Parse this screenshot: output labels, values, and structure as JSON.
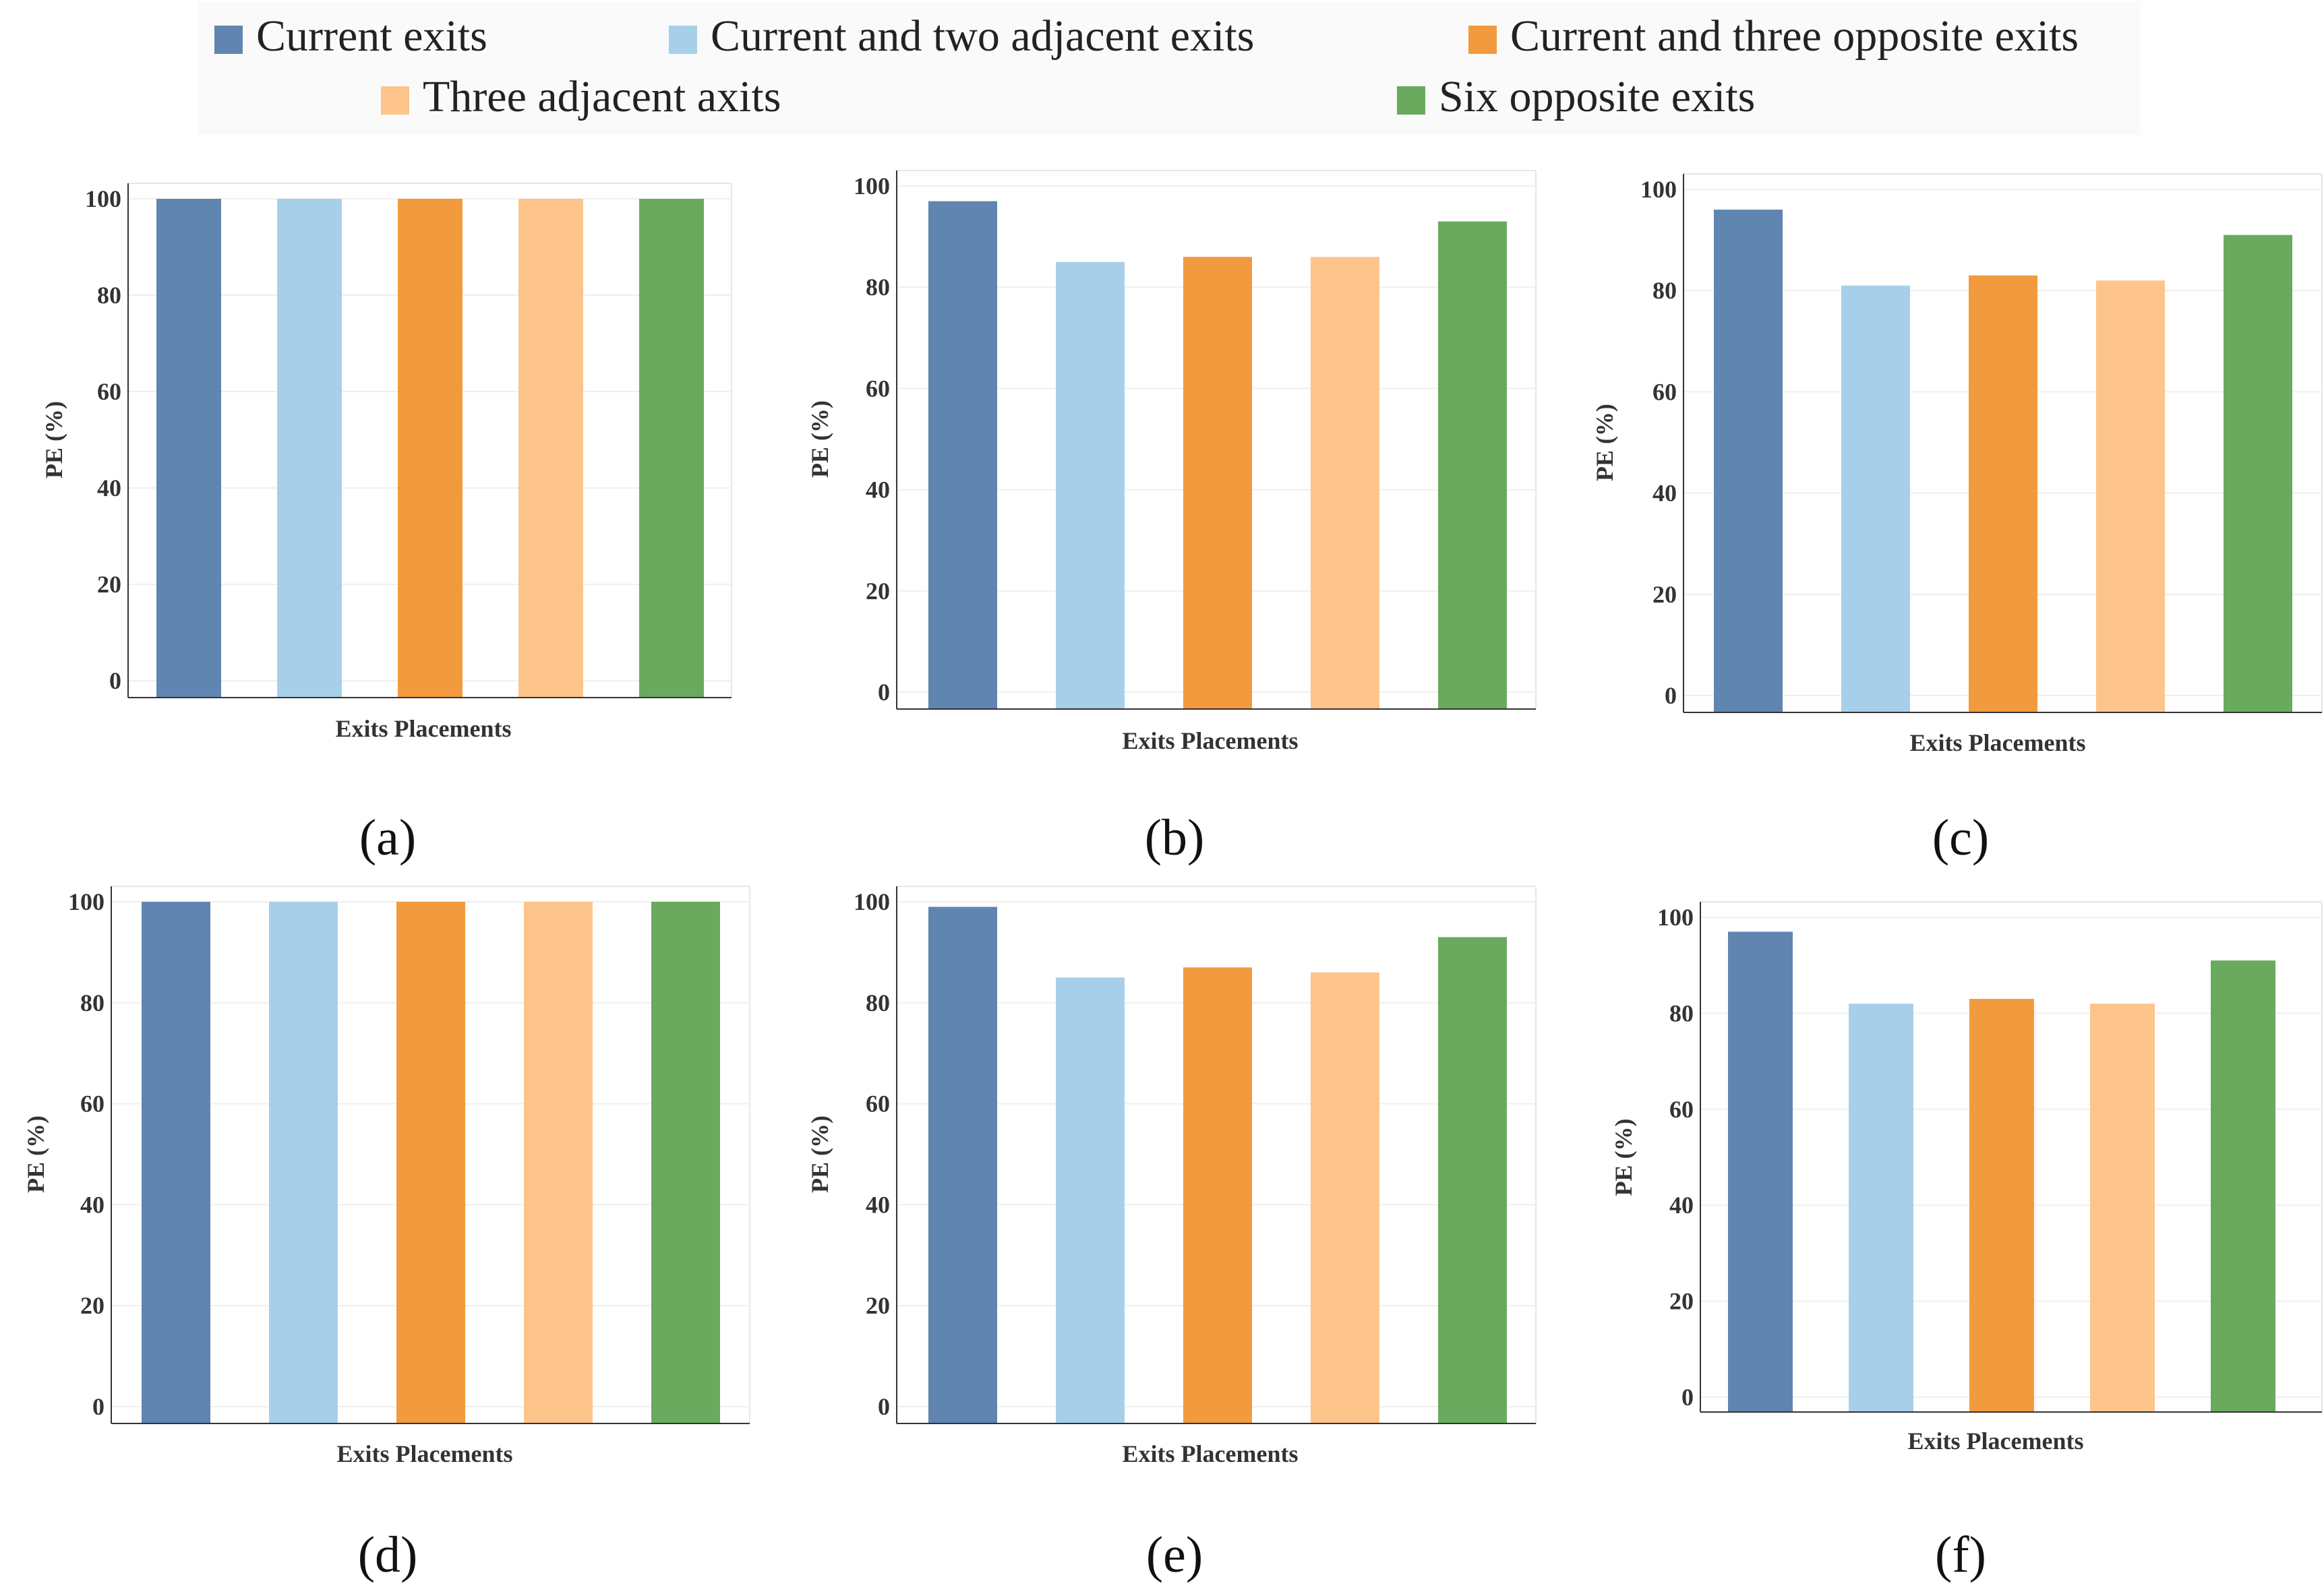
{
  "legend": {
    "items": [
      {
        "label": "Current exits",
        "color": "#5f85b0"
      },
      {
        "label": "Current and two adjacent exits",
        "color": "#a8cfea"
      },
      {
        "label": "Current and three opposite exits",
        "color": "#f29a3e"
      },
      {
        "label": "Three adjacent axits",
        "color": "#fdc48c"
      },
      {
        "label": "Six opposite exits",
        "color": "#6aaa5e"
      }
    ]
  },
  "chart_data": [
    {
      "type": "bar",
      "panel_label": "(a)",
      "xlabel": "Exits Placements",
      "ylabel": "PE (%)",
      "ylim": [
        0,
        100
      ],
      "yticks": [
        "0",
        "20",
        "40",
        "60",
        "80",
        "100"
      ],
      "categories": [
        "Current exits",
        "Current and two adjacent exits",
        "Current and three opposite exits",
        "Three adjacent axits",
        "Six opposite exits"
      ],
      "values": [
        100,
        100,
        100,
        100,
        100
      ]
    },
    {
      "type": "bar",
      "panel_label": "(b)",
      "xlabel": "Exits Placements",
      "ylabel": "PE (%)",
      "ylim": [
        0,
        100
      ],
      "yticks": [
        "0",
        "20",
        "40",
        "60",
        "80",
        "100"
      ],
      "categories": [
        "Current exits",
        "Current and two adjacent exits",
        "Current and three opposite exits",
        "Three adjacent axits",
        "Six opposite exits"
      ],
      "values": [
        97,
        85,
        86,
        86,
        93
      ]
    },
    {
      "type": "bar",
      "panel_label": "(c)",
      "xlabel": "Exits Placements",
      "ylabel": "PE (%)",
      "ylim": [
        0,
        100
      ],
      "yticks": [
        "0",
        "20",
        "40",
        "60",
        "80",
        "100"
      ],
      "categories": [
        "Current exits",
        "Current and two adjacent exits",
        "Current and three opposite exits",
        "Three adjacent axits",
        "Six opposite exits"
      ],
      "values": [
        96,
        81,
        83,
        82,
        91
      ]
    },
    {
      "type": "bar",
      "panel_label": "(d)",
      "xlabel": "Exits Placements",
      "ylabel": "PE (%)",
      "ylim": [
        0,
        100
      ],
      "yticks": [
        "0",
        "20",
        "40",
        "60",
        "80",
        "100"
      ],
      "categories": [
        "Current exits",
        "Current and two adjacent exits",
        "Current and three opposite exits",
        "Three adjacent axits",
        "Six opposite exits"
      ],
      "values": [
        100,
        100,
        100,
        100,
        100
      ]
    },
    {
      "type": "bar",
      "panel_label": "(e)",
      "xlabel": "Exits Placements",
      "ylabel": "PE (%)",
      "ylim": [
        0,
        100
      ],
      "yticks": [
        "0",
        "20",
        "40",
        "60",
        "80",
        "100"
      ],
      "categories": [
        "Current exits",
        "Current and two adjacent exits",
        "Current and three opposite exits",
        "Three adjacent axits",
        "Six opposite exits"
      ],
      "values": [
        99,
        85,
        87,
        86,
        93
      ]
    },
    {
      "type": "bar",
      "panel_label": "(f)",
      "xlabel": "Exits Placements",
      "ylabel": "PE (%)",
      "ylim": [
        0,
        100
      ],
      "yticks": [
        "0",
        "20",
        "40",
        "60",
        "80",
        "100"
      ],
      "categories": [
        "Current exits",
        "Current and two adjacent exits",
        "Current and three opposite exits",
        "Three adjacent axits",
        "Six opposite exits"
      ],
      "values": [
        97,
        82,
        83,
        82,
        91
      ]
    }
  ]
}
